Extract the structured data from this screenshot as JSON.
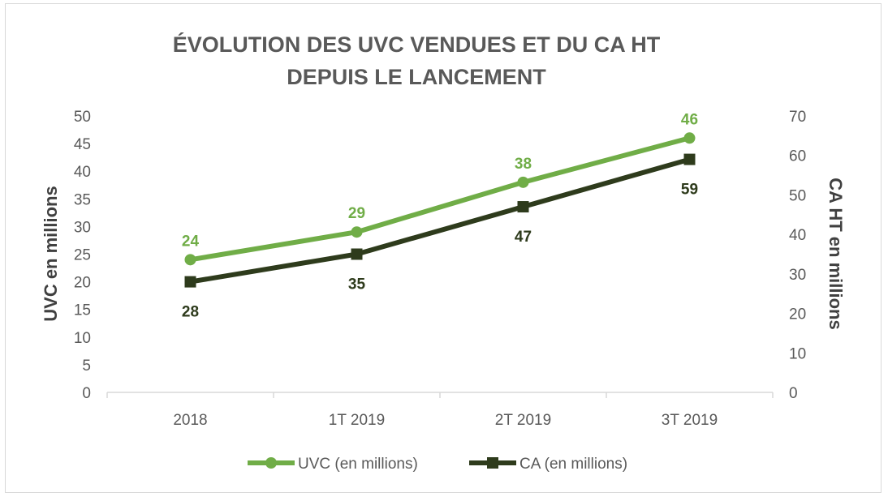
{
  "chart_data": {
    "type": "line",
    "title": [
      "ÉVOLUTION DES UVC VENDUES ET DU CA HT",
      "DEPUIS LE LANCEMENT"
    ],
    "categories": [
      "2018",
      "1T 2019",
      "2T 2019",
      "3T 2019"
    ],
    "ylabel": "UVC en millions",
    "y2label": "CA HT en millions",
    "ylim": [
      0,
      50
    ],
    "y2lim": [
      0,
      70
    ],
    "yticks": [
      0,
      5,
      10,
      15,
      20,
      25,
      30,
      35,
      40,
      45,
      50
    ],
    "y2ticks": [
      0,
      10,
      20,
      30,
      40,
      50,
      60,
      70
    ],
    "grid": false,
    "legend_position": "bottom",
    "series": [
      {
        "name": "UVC (en millions)",
        "axis": "left",
        "values": [
          24,
          29,
          38,
          46
        ],
        "labels": [
          "24",
          "29",
          "38",
          "46"
        ],
        "color": "#70ad47",
        "marker": "circle"
      },
      {
        "name": "CA (en millions)",
        "axis": "right",
        "values": [
          28,
          35,
          47,
          59
        ],
        "labels": [
          "28",
          "35",
          "47",
          "59"
        ],
        "color": "#2e3b1c",
        "marker": "square"
      }
    ]
  }
}
